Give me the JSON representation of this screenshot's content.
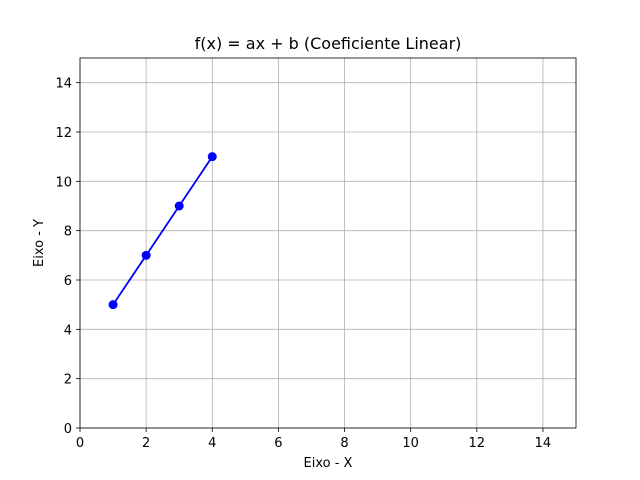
{
  "chart_data": {
    "type": "line",
    "title": "f(x) = ax + b (Coeficiente Linear)",
    "xlabel": "Eixo - X",
    "ylabel": "Eixo - Y",
    "xlim": [
      0,
      15
    ],
    "ylim": [
      0,
      15
    ],
    "xticks": [
      0,
      2,
      4,
      6,
      8,
      10,
      12,
      14
    ],
    "yticks": [
      0,
      2,
      4,
      6,
      8,
      10,
      12,
      14
    ],
    "grid": true,
    "series": [
      {
        "x": [
          1,
          2,
          3,
          4
        ],
        "y": [
          5,
          7,
          9,
          11
        ],
        "color": "#0000ff",
        "marker": "circle"
      }
    ]
  }
}
